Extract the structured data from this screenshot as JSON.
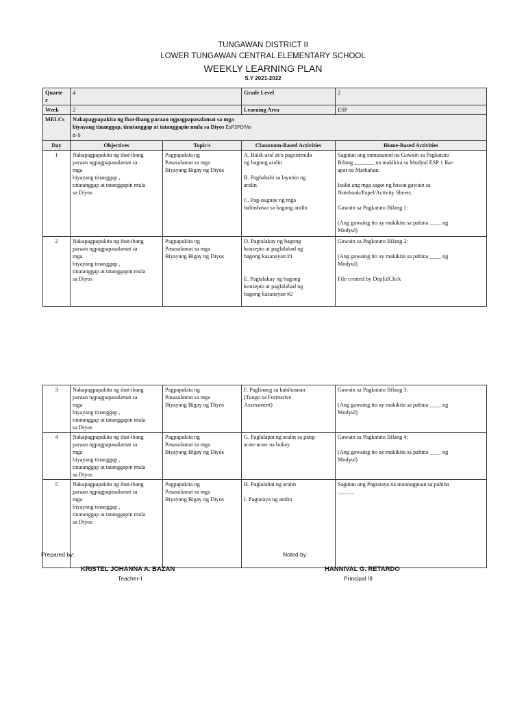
{
  "header": {
    "district": "TUNGAWAN DISTRICT II",
    "school": "LOWER TUNGAWAN CENTRAL ELEMENTARY SCHOOL",
    "title": "WEEKLY LEARNING PLAN",
    "school_year": "S.Y 2021-2022"
  },
  "info": {
    "quarter_label": "Quarte\nr",
    "quarter": "4",
    "grade_label": "Grade Level",
    "grade": "2",
    "week_label": "Week",
    "week": "2",
    "area_label": "Learning Area",
    "area": "ESP",
    "melcs_label": "MELCs",
    "melcs": "Nakapagpapakita ng ibat-ibang paraan ngpagpapasalamat sa mga\nbiyayang tinanggap, tinatanggap at tatanggapin mula sa Diyos",
    "melcs_code": "EsP2PDIVa-\nd–5"
  },
  "columns": [
    "Day",
    "Objectives",
    "Topic/s",
    "Classroom-Based Activities",
    "Home-Based Activities"
  ],
  "rows": [
    {
      "day": "1",
      "objectives": "Nakapagpapakita ng ibat-ibang\nparaan ngpagpapasalamat sa\nmga\nbiyayang tinanggap ,\ntinatanggap at tatanggapin mula\nsa Diyos",
      "topic": "Pagpapakita ng\nPasasalamat sa mga\nBiyayang Bigay ng Diyos",
      "classroom": "A. Balik-aral at/o pagsisimula\nng bagong aralin\n\nB.  Paghahabi sa layunin ng\naralin\n\nC.  Pag-uugnay ng mga\nhalimbawa sa bagong aralin",
      "home": "Sagutan ang sumusunod na  Gawain sa Pagkatuto\nBilang _______ na makikita sa Modyul ESP 1 Ika-\napat na Markahan.\n\nIsulat ang mga sagot ng bawat gawain sa\nNotebook/Papel/Activity Sheets.\n\nGawain sa Pagkatuto Bilang 1:\n\n(Ang gawaing ito ay makikita sa pahina ____ ng\nModyul)"
    },
    {
      "day": "2",
      "objectives": "Nakapagpapakita ng ibat-ibang\nparaan ngpagpapasalamat sa\nmga\nbiyayang tinanggap ,\ntinatanggap at tatanggapin mula\nsa Diyos",
      "topic": "Pagpapakita ng\nPasasalamat sa mga\nBiyayang Bigay ng Diyos",
      "classroom": "D.   Pagtalakay ng bagong\nkonsepto at paglalahad ng\nbagong kasanayan #1\n\n\nE.  Pagtalakay ng bagong\nkonsepto at paglalahad ng\nbagong kasanayan #2",
      "home": "Gawain sa Pagkatuto Bilang 2:\n\n(Ang gawaing ito ay makikita sa pahina ____ ng\nModyul)\n\nFile created by DepEdClick"
    },
    {
      "day": "3",
      "objectives": "Nakapagpapakita ng ibat-ibang\nparaan ngpagpapasalamat sa\nmga\nbiyayang tinanggap ,\ntinatanggap at tatanggapin mula\nsa Diyos",
      "topic": "Pagpapakita ng\nPasasalamat sa mga\nBiyayang Bigay ng Diyos",
      "classroom": "F.  Paglinang sa kabihasnan\n(Tungo sa Formative\nAssessment)",
      "home": "Gawain sa Pagkatuto Bilang 3:\n\n(Ang gawaing ito ay makikita sa pahina ____ ng\nModyul)"
    },
    {
      "day": "4",
      "objectives": "Nakapagpapakita ng ibat-ibang\nparaan ngpagpapasalamat sa\nmga\nbiyayang tinanggap ,\ntinatanggap at tatanggapin mula\nsa Diyos",
      "topic": "Pagpapakita ng\nPasasalamat sa mga\nBiyayang Bigay ng Diyos",
      "classroom": "G.  Paglalapat ng aralin sa pang-\naraw-araw na buhay",
      "home": "Gawain sa Pagkatuto Bilang 4:\n\n(Ang gawaing ito ay makikita sa pahina ____ ng\nModyul)"
    },
    {
      "day": "5",
      "objectives": "Nakapagpapakita ng ibat-ibang\nparaan ngpagpapasalamat sa\nmga\nbiyayang tinanggap ,\ntinatanggap at tatanggapin mula\nsa Diyos",
      "topic": "Pagpapakita ng\nPasasalamat sa mga\nBiyayang Bigay ng Diyos",
      "classroom": "H.   Paglalahat ng aralin\n\nI.  Pagtataya ng aralin",
      "home": "Sagutan ang Pagtataya na matatagpuan sa pahina\n_____."
    }
  ],
  "footer": {
    "prepared_label": "Prepared by:",
    "prepared_name": "KRISTEL JOHANNA A. BAZAN",
    "prepared_title": "Teacher-I",
    "noted_label": "Noted by:",
    "noted_name": "HANNIVAL G. RETARDO",
    "noted_title": "Principal III"
  }
}
